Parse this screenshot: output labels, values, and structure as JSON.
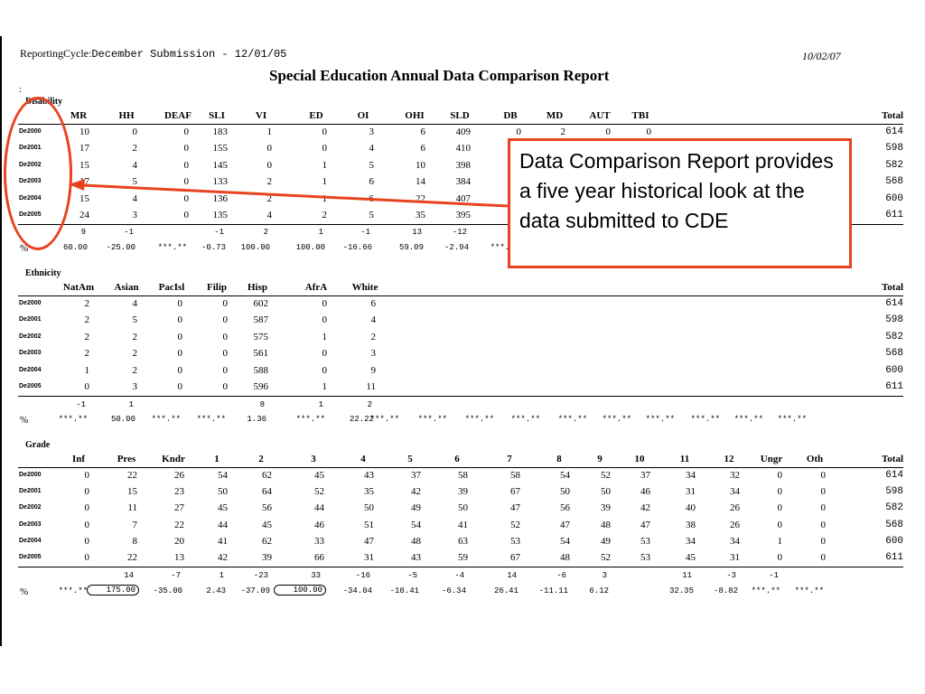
{
  "header": {
    "cycle_label": "ReportingCycle:",
    "cycle_value": "December Submission - 12/01/05",
    "date": "10/02/07",
    "title": "Special Education Annual Data Comparison Report",
    "stray_mark": ":"
  },
  "year_codes": [
    "De2000",
    "De2001",
    "De2002",
    "De2003",
    "De2004",
    "De2005"
  ],
  "pct_label": "%",
  "total_label": "Total",
  "disability": {
    "section_label": "Disability",
    "columns": [
      "MR",
      "HH",
      "DEAF",
      "SLI",
      "VI",
      "ED",
      "OI",
      "OHI",
      "SLD",
      "DB",
      "MD",
      "AUT",
      "TBI"
    ],
    "rows": [
      [
        "10",
        "0",
        "0",
        "183",
        "1",
        "0",
        "3",
        "6",
        "409",
        "0",
        "2",
        "0",
        "0"
      ],
      [
        "17",
        "2",
        "0",
        "155",
        "0",
        "0",
        "4",
        "6",
        "410",
        "",
        "",
        "",
        ""
      ],
      [
        "15",
        "4",
        "0",
        "145",
        "0",
        "1",
        "5",
        "10",
        "398",
        "",
        "",
        "",
        ""
      ],
      [
        "17",
        "5",
        "0",
        "133",
        "2",
        "1",
        "6",
        "14",
        "384",
        "",
        "",
        "",
        ""
      ],
      [
        "15",
        "4",
        "0",
        "136",
        "2",
        "1",
        "6",
        "22",
        "407",
        "",
        "",
        "",
        ""
      ],
      [
        "24",
        "3",
        "0",
        "135",
        "4",
        "2",
        "5",
        "35",
        "395",
        "",
        "",
        "",
        ""
      ]
    ],
    "totals": [
      "614",
      "598",
      "582",
      "568",
      "600",
      "611"
    ],
    "diff": [
      "9",
      "-1",
      "",
      "-1",
      "2",
      "1",
      "-1",
      "13",
      "-12",
      "",
      "",
      "",
      ""
    ],
    "pct": [
      "60.00",
      "-25.00",
      "***.**",
      "-0.73",
      "100.00",
      "100.00",
      "-16.66",
      "59.09",
      "-2.94",
      "***.**",
      "",
      "",
      ""
    ]
  },
  "ethnicity": {
    "section_label": "Ethnicity",
    "columns": [
      "NatAm",
      "Asian",
      "PacIsl",
      "Filip",
      "Hisp",
      "AfrA",
      "White"
    ],
    "rows": [
      [
        "2",
        "4",
        "0",
        "0",
        "602",
        "0",
        "6"
      ],
      [
        "2",
        "5",
        "0",
        "0",
        "587",
        "0",
        "4"
      ],
      [
        "2",
        "2",
        "0",
        "0",
        "575",
        "1",
        "2"
      ],
      [
        "2",
        "2",
        "0",
        "0",
        "561",
        "0",
        "3"
      ],
      [
        "1",
        "2",
        "0",
        "0",
        "588",
        "0",
        "9"
      ],
      [
        "0",
        "3",
        "0",
        "0",
        "596",
        "1",
        "11"
      ]
    ],
    "totals": [
      "614",
      "598",
      "582",
      "568",
      "600",
      "611"
    ],
    "diff": [
      "-1",
      "1",
      "",
      "",
      "8",
      "1",
      "2"
    ],
    "pct": [
      "***.**",
      "50.00",
      "***.**",
      "***.**",
      "1.36",
      "***.**",
      "22.22"
    ],
    "pct_extra": [
      "***.**",
      "***.**",
      "***.**",
      "***.**",
      "***.**",
      "***.**",
      "***.**",
      "***.**",
      "***.**",
      "***.**"
    ]
  },
  "grade": {
    "section_label": "Grade",
    "columns": [
      "Inf",
      "Pres",
      "Kndr",
      "1",
      "2",
      "3",
      "4",
      "5",
      "6",
      "7",
      "8",
      "9",
      "10",
      "11",
      "12",
      "Ungr",
      "Oth"
    ],
    "rows": [
      [
        "0",
        "22",
        "26",
        "54",
        "62",
        "45",
        "43",
        "37",
        "58",
        "58",
        "54",
        "52",
        "37",
        "34",
        "32",
        "0",
        "0"
      ],
      [
        "0",
        "15",
        "23",
        "50",
        "64",
        "52",
        "35",
        "42",
        "39",
        "67",
        "50",
        "50",
        "46",
        "31",
        "34",
        "0",
        "0"
      ],
      [
        "0",
        "11",
        "27",
        "45",
        "56",
        "44",
        "50",
        "49",
        "50",
        "47",
        "56",
        "39",
        "42",
        "40",
        "26",
        "0",
        "0"
      ],
      [
        "0",
        "7",
        "22",
        "44",
        "45",
        "46",
        "51",
        "54",
        "41",
        "52",
        "47",
        "48",
        "47",
        "38",
        "26",
        "0",
        "0"
      ],
      [
        "0",
        "8",
        "20",
        "41",
        "62",
        "33",
        "47",
        "48",
        "63",
        "53",
        "54",
        "49",
        "53",
        "34",
        "34",
        "1",
        "0"
      ],
      [
        "0",
        "22",
        "13",
        "42",
        "39",
        "66",
        "31",
        "43",
        "59",
        "67",
        "48",
        "52",
        "53",
        "45",
        "31",
        "0",
        "0"
      ]
    ],
    "totals": [
      "614",
      "598",
      "582",
      "568",
      "600",
      "611"
    ],
    "diff": [
      "",
      "14",
      "-7",
      "1",
      "-23",
      "33",
      "-16",
      "-5",
      "-4",
      "14",
      "-6",
      "3",
      "",
      "11",
      "-3",
      "-1",
      ""
    ],
    "pct": [
      "***.**",
      "175.00",
      "-35.00",
      "2.43",
      "-37.09",
      "100.00",
      "-34.04",
      "-10.41",
      "-6.34",
      "26.41",
      "-11.11",
      "6.12",
      "",
      "32.35",
      "-8.82",
      "***.**",
      "***.**"
    ]
  },
  "callout": {
    "text": "Data Comparison Report provides a five year historical look at the data submitted to CDE",
    "color": "#e8431f"
  }
}
